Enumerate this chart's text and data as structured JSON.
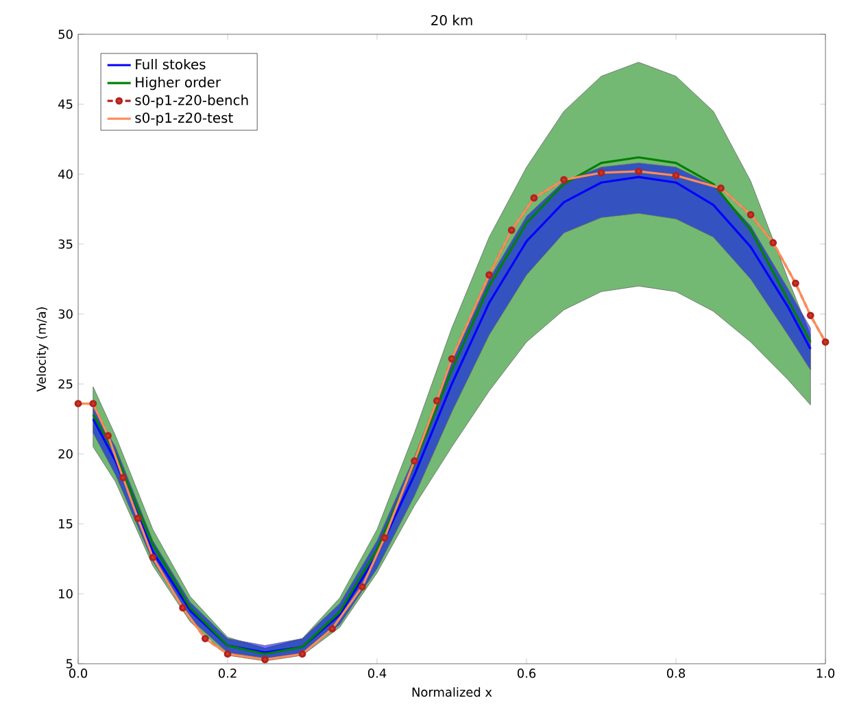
{
  "chart_data": {
    "type": "line",
    "title": "20 km",
    "xlabel": "Normalized x",
    "ylabel": "Velocity (m/a)",
    "xlim": [
      0,
      1
    ],
    "ylim": [
      5,
      50
    ],
    "xticks": [
      {
        "value": 0,
        "label": "0.0"
      },
      0.2,
      0.4,
      0.6,
      0.8,
      {
        "value": 1,
        "label": "1.0"
      }
    ],
    "yticks": [
      5,
      10,
      15,
      20,
      25,
      30,
      35,
      40,
      45,
      50
    ],
    "grid": false,
    "legend": "top left",
    "series": [
      {
        "name": "Full stokes",
        "color": "#0000ff",
        "marker": "none",
        "line_style": "solid",
        "x": [
          0.02,
          0.05,
          0.1,
          0.15,
          0.2,
          0.25,
          0.3,
          0.35,
          0.4,
          0.45,
          0.5,
          0.55,
          0.6,
          0.65,
          0.7,
          0.75,
          0.8,
          0.85,
          0.9,
          0.95,
          0.98
        ],
        "values": [
          22.5,
          19.5,
          13.0,
          8.8,
          6.3,
          5.8,
          6.2,
          8.5,
          12.8,
          18.5,
          25.0,
          30.8,
          35.2,
          38.0,
          39.4,
          39.8,
          39.4,
          37.8,
          34.8,
          30.5,
          27.5
        ],
        "lower": [
          21.5,
          18.5,
          12.3,
          8.2,
          5.8,
          5.4,
          5.7,
          7.8,
          11.8,
          17.0,
          23.0,
          28.5,
          32.8,
          35.8,
          36.9,
          37.2,
          36.8,
          35.5,
          32.5,
          28.5,
          26.0
        ],
        "upper": [
          23.3,
          20.5,
          13.8,
          9.4,
          6.8,
          6.3,
          6.8,
          9.3,
          13.8,
          19.8,
          26.6,
          32.5,
          37.0,
          39.5,
          40.5,
          40.8,
          40.5,
          39.2,
          36.3,
          31.8,
          29.0
        ]
      },
      {
        "name": "Higher order",
        "color": "#008000",
        "marker": "none",
        "line_style": "solid",
        "x": [
          0.02,
          0.05,
          0.1,
          0.15,
          0.2,
          0.25,
          0.3,
          0.35,
          0.4,
          0.45,
          0.5,
          0.55,
          0.6,
          0.65,
          0.7,
          0.75,
          0.8,
          0.85,
          0.9,
          0.95,
          0.98
        ],
        "values": [
          22.8,
          20.0,
          13.5,
          9.0,
          6.3,
          5.7,
          6.2,
          8.7,
          13.2,
          19.3,
          26.0,
          32.0,
          36.5,
          39.3,
          40.8,
          41.2,
          40.8,
          39.3,
          36.0,
          31.0,
          28.0
        ],
        "lower": [
          20.5,
          18.0,
          12.0,
          8.0,
          5.6,
          5.2,
          5.6,
          7.6,
          11.5,
          16.3,
          20.5,
          24.5,
          28.0,
          30.3,
          31.6,
          32.0,
          31.6,
          30.2,
          28.0,
          25.3,
          23.5
        ],
        "upper": [
          24.8,
          21.3,
          14.6,
          9.8,
          6.9,
          6.1,
          6.8,
          9.7,
          14.6,
          21.5,
          29.0,
          35.5,
          40.5,
          44.5,
          47.0,
          48.0,
          47.0,
          44.5,
          39.5,
          32.5,
          28.5
        ]
      },
      {
        "name": "s0-p1-z20-bench",
        "color": "#b22222",
        "marker": "circle",
        "line_style": "dashed",
        "x": [
          0,
          0.02,
          0.04,
          0.06,
          0.08,
          0.1,
          0.14,
          0.17,
          0.2,
          0.25,
          0.3,
          0.34,
          0.38,
          0.41,
          0.45,
          0.48,
          0.5,
          0.55,
          0.58,
          0.61,
          0.65,
          0.7,
          0.75,
          0.8,
          0.86,
          0.9,
          0.93,
          0.96,
          0.98,
          1.0
        ],
        "values": [
          23.6,
          23.6,
          21.3,
          18.3,
          15.4,
          12.6,
          9.0,
          6.8,
          5.7,
          5.3,
          5.7,
          7.5,
          10.5,
          14.0,
          19.5,
          23.8,
          26.8,
          32.8,
          36.0,
          38.3,
          39.6,
          40.1,
          40.2,
          39.9,
          39.0,
          37.1,
          35.1,
          32.2,
          29.9,
          28.0
        ]
      },
      {
        "name": "s0-p1-z20-test",
        "color": "#ff8c5a",
        "marker": "none",
        "line_style": "solid",
        "x": [
          0,
          0.02,
          0.04,
          0.06,
          0.08,
          0.1,
          0.14,
          0.17,
          0.2,
          0.25,
          0.3,
          0.34,
          0.38,
          0.41,
          0.45,
          0.48,
          0.5,
          0.55,
          0.58,
          0.61,
          0.65,
          0.7,
          0.75,
          0.8,
          0.86,
          0.9,
          0.93,
          0.96,
          0.98,
          1.0
        ],
        "values": [
          23.6,
          23.6,
          21.3,
          18.3,
          15.4,
          12.6,
          9.0,
          6.8,
          5.7,
          5.3,
          5.7,
          7.5,
          10.5,
          14.0,
          19.5,
          23.8,
          26.8,
          32.8,
          36.0,
          38.3,
          39.6,
          40.1,
          40.2,
          39.9,
          39.0,
          37.1,
          35.1,
          32.2,
          29.9,
          28.0
        ]
      }
    ]
  }
}
